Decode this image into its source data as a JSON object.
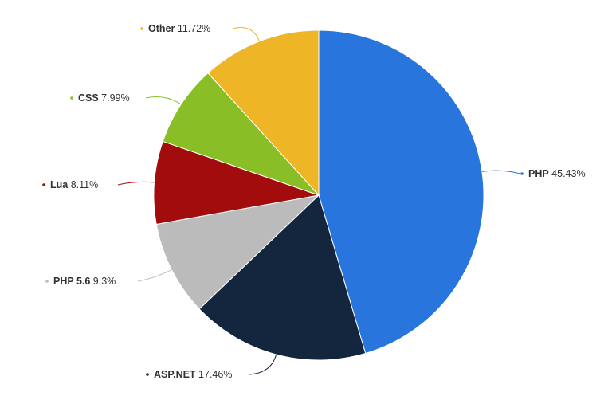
{
  "chart_data": {
    "type": "pie",
    "title": "",
    "slices": [
      {
        "name": "PHP",
        "value": 45.43,
        "label": "45.43%",
        "color": "#2876DD"
      },
      {
        "name": "ASP.NET",
        "value": 17.46,
        "label": "17.46%",
        "color": "#13263D"
      },
      {
        "name": "PHP 5.6",
        "value": 9.3,
        "label": "9.3%",
        "color": "#BBBBBB"
      },
      {
        "name": "Lua",
        "value": 8.11,
        "label": "8.11%",
        "color": "#A30C0C"
      },
      {
        "name": "CSS",
        "value": 7.99,
        "label": "7.99%",
        "color": "#8ABE26"
      },
      {
        "name": "Other",
        "value": 11.72,
        "label": "11.72%",
        "color": "#EEB526"
      }
    ],
    "start_angle": "12 o'clock",
    "direction": "clockwise",
    "legend": "none"
  }
}
